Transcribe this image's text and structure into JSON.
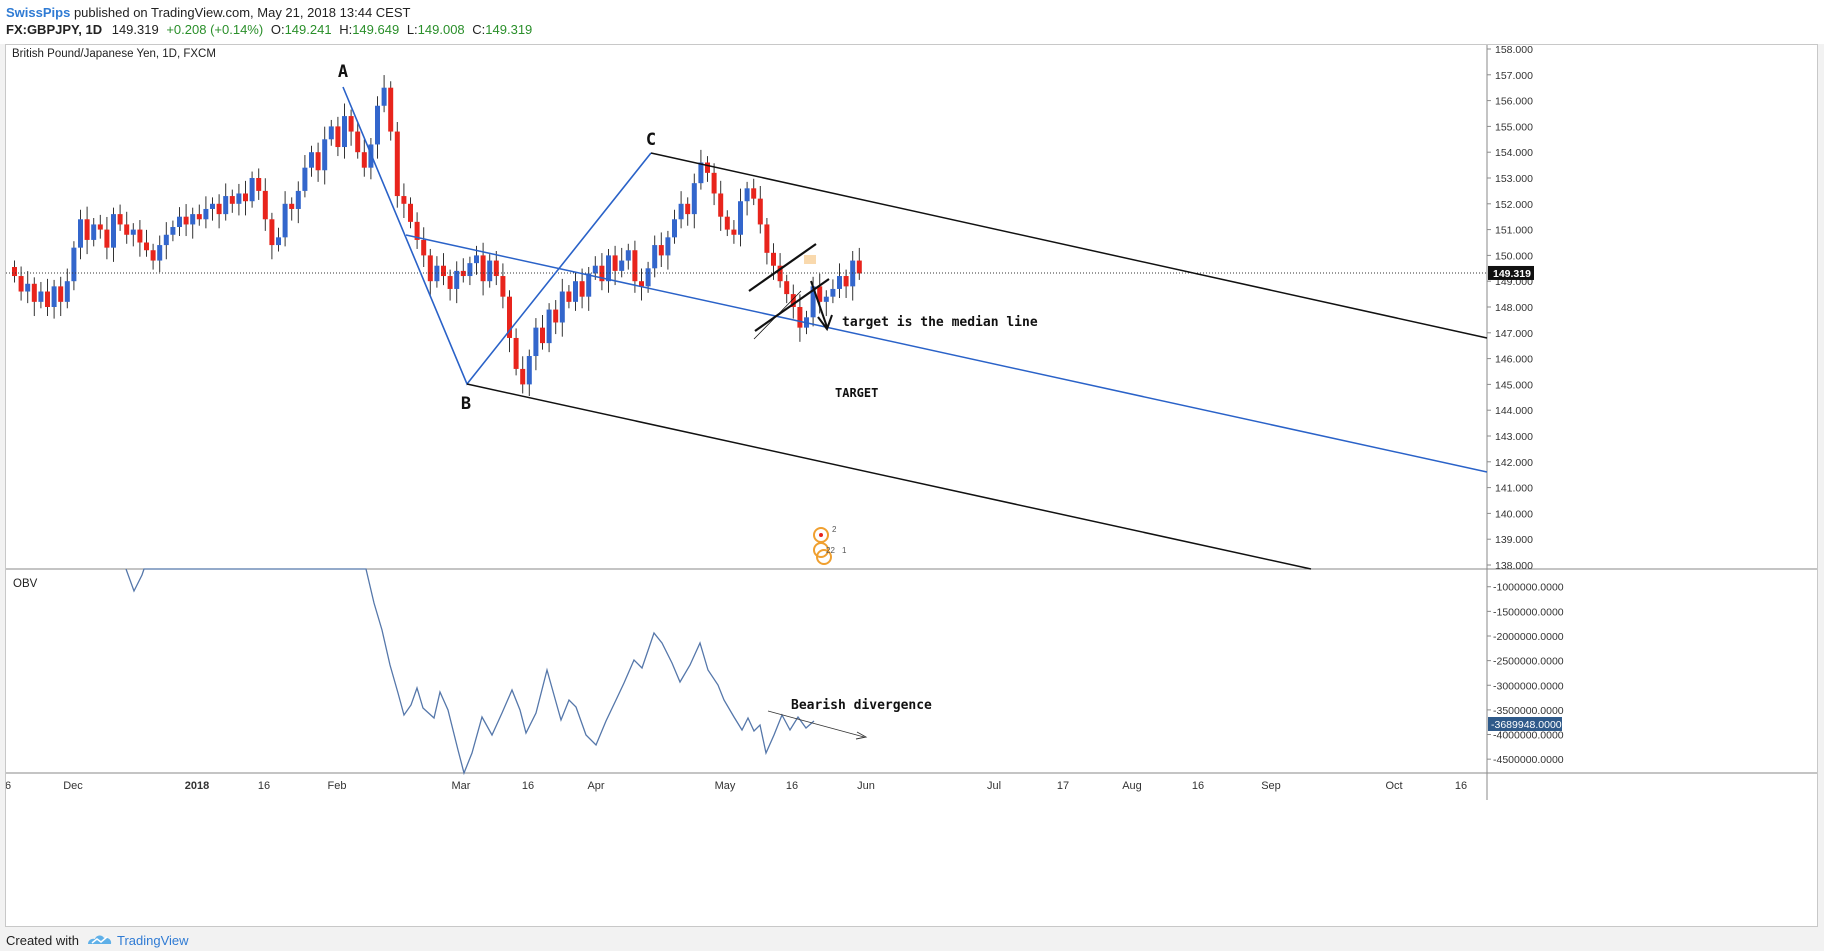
{
  "header": {
    "author": "SwissPips",
    "published": "published on TradingView.com, May 21, 2018 13:44 CEST",
    "symbol": "FX:GBPJPY, 1D",
    "last": "149.319",
    "change": "+0.208 (+0.14%)",
    "o_label": "O:",
    "o_value": "149.241",
    "h_label": "H:",
    "h_value": "149.649",
    "l_label": "L:",
    "l_value": "149.008",
    "c_label": "C:",
    "c_value": "149.319"
  },
  "footer": {
    "created_with": "Created with",
    "brand": "TradingView"
  },
  "colors": {
    "up": "#3366cc",
    "down": "#e8241c",
    "line_blue": "#2a62c8",
    "line_black": "#111111",
    "obv": "#5577aa",
    "axis": "#333333"
  },
  "chart_data": [
    {
      "type": "candlestick",
      "title": "British Pound/Japanese Yen, 1D, FXCM",
      "ylim": [
        138.0,
        158.0
      ],
      "yticks": [
        "158.000",
        "157.000",
        "156.000",
        "155.000",
        "154.000",
        "153.000",
        "152.000",
        "151.000",
        "150.000",
        "149.000",
        "148.000",
        "147.000",
        "146.000",
        "145.000",
        "144.000",
        "143.000",
        "142.000",
        "141.000",
        "140.000",
        "139.000",
        "138.000"
      ],
      "last_price": 149.319,
      "last_price_label": "149.319",
      "xticks": [
        "6",
        "Dec",
        "2018",
        "16",
        "Feb",
        "Mar",
        "16",
        "Apr",
        "May",
        "16",
        "Jun",
        "Jul",
        "17",
        "Aug",
        "16",
        "Sep",
        "Oct",
        "16"
      ],
      "closes": [
        149.2,
        148.6,
        148.9,
        148.2,
        148.6,
        148.0,
        148.8,
        148.2,
        149.0,
        150.3,
        151.4,
        150.6,
        151.2,
        151.0,
        150.3,
        151.6,
        151.2,
        150.8,
        151.0,
        150.5,
        150.2,
        149.8,
        150.4,
        150.8,
        151.1,
        151.5,
        151.2,
        151.6,
        151.4,
        151.8,
        152.0,
        151.6,
        152.3,
        152.0,
        152.4,
        152.1,
        153.0,
        152.5,
        151.4,
        150.4,
        150.7,
        152.0,
        151.8,
        152.5,
        153.4,
        154.0,
        153.3,
        154.5,
        155.0,
        154.2,
        155.4,
        154.8,
        154.0,
        153.4,
        154.3,
        155.8,
        156.5,
        154.8,
        152.3,
        152.0,
        151.3,
        150.6,
        150.0,
        149.0,
        149.6,
        149.2,
        148.7,
        149.4,
        149.2,
        149.7,
        150.0,
        149.0,
        149.8,
        149.2,
        148.4,
        146.8,
        145.6,
        145.0,
        146.1,
        147.2,
        146.6,
        147.9,
        147.4,
        148.6,
        148.2,
        149.0,
        148.4,
        149.3,
        149.6,
        149.0,
        150.0,
        149.4,
        149.8,
        150.2,
        149.0,
        148.8,
        149.5,
        150.4,
        150.0,
        150.7,
        151.4,
        152.0,
        151.6,
        152.8,
        153.6,
        153.2,
        152.4,
        151.5,
        151.0,
        150.8,
        152.1,
        152.6,
        152.2,
        151.2,
        150.1,
        149.6,
        149.0,
        148.5,
        148.0,
        147.2,
        147.6,
        148.8,
        148.2,
        148.4,
        148.7,
        149.2,
        148.8,
        149.8,
        149.3
      ],
      "annotations": {
        "pivot_a": "A",
        "pivot_b": "B",
        "pivot_c": "C",
        "target_note": "target is the median line",
        "target_label": "TARGET",
        "marker_1": "2",
        "marker_2": "22",
        "marker_3": "1"
      }
    },
    {
      "type": "line",
      "title": "OBV",
      "ylim": [
        -4700000,
        -640000
      ],
      "yticks": [
        "-1000000.0000",
        "-1500000.0000",
        "-2000000.0000",
        "-2500000.0000",
        "-3000000.0000",
        "-3500000.0000",
        "-4000000.0000",
        "-4500000.0000"
      ],
      "last_value_label": "-3689948.0000",
      "annotation": "Bearish divergence"
    }
  ]
}
